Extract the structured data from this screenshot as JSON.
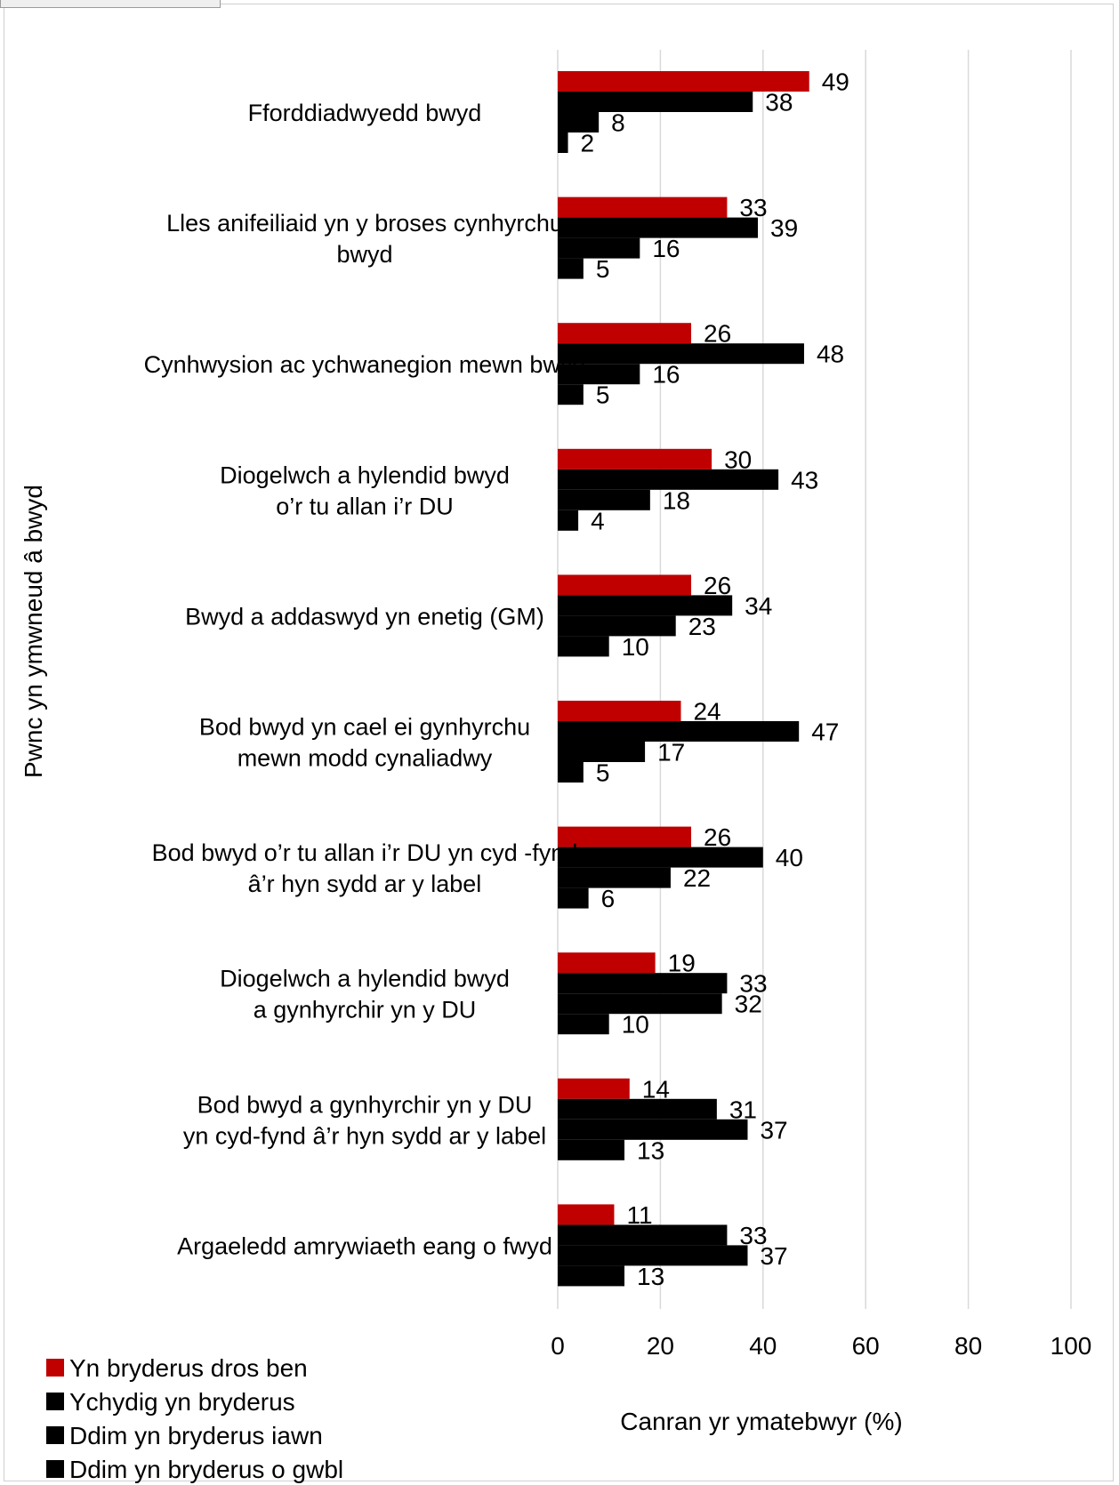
{
  "chart_data": {
    "type": "bar",
    "orientation": "horizontal",
    "ylabel": "Pwnc yn ymwneud â bwyd",
    "xlabel": "Canran yr ymatebwyr (%)",
    "xlim": [
      0,
      100
    ],
    "xticks": [
      "0",
      "20",
      "40",
      "60",
      "80",
      "100"
    ],
    "grid": true,
    "legend_position": "bottom-left",
    "categories": [
      [
        "Fforddiadwyedd bwyd"
      ],
      [
        "Lles anifeiliaid yn y broses cynhyrchu",
        "bwyd"
      ],
      [
        "Cynhwysion ac ychwanegion mewn bwyd"
      ],
      [
        "Diogelwch a hylendid bwyd",
        "o’r tu allan i’r DU"
      ],
      [
        "Bwyd a addaswyd yn enetig (GM)"
      ],
      [
        "Bod bwyd yn cael ei gynhyrchu",
        "mewn modd cynaliadwy"
      ],
      [
        "Bod bwyd o’r tu allan i’r DU yn cyd  -fynd",
        "â’r hyn sydd ar y label"
      ],
      [
        "Diogelwch a hylendid bwyd",
        "a gynhyrchir yn y DU"
      ],
      [
        "Bod bwyd a gynhyrchir yn y DU",
        "yn cyd-fynd â’r hyn sydd ar y label"
      ],
      [
        "Argaeledd amrywiaeth eang o fwyd"
      ]
    ],
    "series": [
      {
        "name": "Yn bryderus dros ben",
        "color": "#c00000",
        "values": [
          49,
          33,
          26,
          30,
          26,
          24,
          26,
          19,
          14,
          11
        ]
      },
      {
        "name": "Ychydig yn bryderus",
        "color": "#000000",
        "values": [
          38,
          39,
          48,
          43,
          34,
          47,
          40,
          33,
          31,
          33
        ]
      },
      {
        "name": "Ddim yn bryderus iawn",
        "color": "#000000",
        "values": [
          8,
          16,
          16,
          18,
          23,
          17,
          22,
          32,
          37,
          37
        ]
      },
      {
        "name": "Ddim yn bryderus o gwbl",
        "color": "#000000",
        "values": [
          2,
          5,
          5,
          4,
          10,
          5,
          6,
          10,
          13,
          13
        ]
      }
    ]
  }
}
